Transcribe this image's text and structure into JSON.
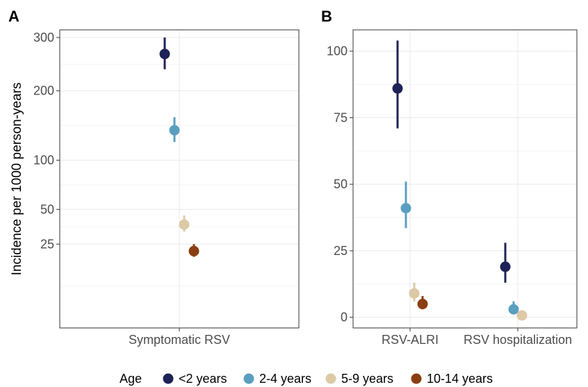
{
  "chart_data": [
    {
      "panel": "A",
      "type": "scatter",
      "title": "",
      "xlabel": "",
      "ylabel": "Incidence per 1000 person-years",
      "scale": "sqrt",
      "ylim": [
        0,
        316
      ],
      "y_ticks": [
        25,
        50,
        100,
        200,
        300
      ],
      "categories": [
        "Symptomatic RSV"
      ],
      "grid": true,
      "series": [
        {
          "name": "<2 years",
          "color": "#1e2257",
          "points": [
            {
              "category": "Symptomatic RSV",
              "y": 267,
              "lo": 238,
              "hi": 300
            }
          ]
        },
        {
          "name": "2-4 years",
          "color": "#5a9fc0",
          "points": [
            {
              "category": "Symptomatic RSV",
              "y": 139,
              "lo": 123,
              "hi": 158
            }
          ]
        },
        {
          "name": "5-9 years",
          "color": "#dcc9a5",
          "points": [
            {
              "category": "Symptomatic RSV",
              "y": 38,
              "lo": 33,
              "hi": 45
            }
          ]
        },
        {
          "name": "10-14 years",
          "color": "#8a3e13",
          "points": [
            {
              "category": "Symptomatic RSV",
              "y": 21,
              "lo": 18,
              "hi": 25
            }
          ]
        }
      ]
    },
    {
      "panel": "B",
      "type": "scatter",
      "title": "",
      "xlabel": "",
      "ylabel": "",
      "scale": "linear",
      "ylim": [
        -4,
        108
      ],
      "y_ticks": [
        0,
        25,
        50,
        75,
        100
      ],
      "categories": [
        "RSV-ALRI",
        "RSV hospitalization"
      ],
      "grid": true,
      "series": [
        {
          "name": "<2 years",
          "color": "#1e2257",
          "points": [
            {
              "category": "RSV-ALRI",
              "y": 86,
              "lo": 71,
              "hi": 104
            },
            {
              "category": "RSV hospitalization",
              "y": 19,
              "lo": 13,
              "hi": 28
            }
          ]
        },
        {
          "name": "2-4 years",
          "color": "#5a9fc0",
          "points": [
            {
              "category": "RSV-ALRI",
              "y": 41,
              "lo": 33.5,
              "hi": 51
            },
            {
              "category": "RSV hospitalization",
              "y": 3,
              "lo": 1.5,
              "hi": 6
            }
          ]
        },
        {
          "name": "5-9 years",
          "color": "#dcc9a5",
          "points": [
            {
              "category": "RSV-ALRI",
              "y": 9,
              "lo": 6,
              "hi": 13
            },
            {
              "category": "RSV hospitalization",
              "y": 0.7,
              "lo": 0.2,
              "hi": 1.6
            }
          ]
        },
        {
          "name": "10-14 years",
          "color": "#8a3e13",
          "points": [
            {
              "category": "RSV-ALRI",
              "y": 5,
              "lo": 3,
              "hi": 8
            },
            {
              "category": "RSV hospitalization",
              "y": null,
              "lo": null,
              "hi": null
            }
          ]
        }
      ]
    }
  ],
  "legend": {
    "title": "Age",
    "placement": "bottom",
    "items": [
      {
        "label": "<2 years",
        "color": "#1e2257"
      },
      {
        "label": "2-4 years",
        "color": "#5a9fc0"
      },
      {
        "label": "5-9 years",
        "color": "#dcc9a5"
      },
      {
        "label": "10-14 years",
        "color": "#8a3e13"
      }
    ]
  }
}
